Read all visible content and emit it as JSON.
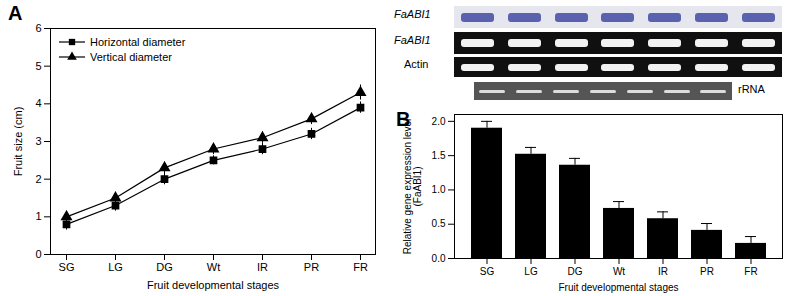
{
  "chart_data": [
    {
      "type": "line",
      "title": "A",
      "categories": [
        "SG",
        "LG",
        "DG",
        "Wt",
        "IR",
        "PR",
        "FR"
      ],
      "series": [
        {
          "name": "Horizontal diameter",
          "color": "#000000",
          "marker": "square",
          "values": [
            0.8,
            1.3,
            2.0,
            2.5,
            2.8,
            3.2,
            3.9
          ],
          "errors": [
            0.15,
            0.15,
            0.15,
            0.12,
            0.15,
            0.15,
            0.15
          ]
        },
        {
          "name": "Vertical diameter",
          "color": "#000000",
          "marker": "triangle",
          "values": [
            1.0,
            1.5,
            2.3,
            2.8,
            3.1,
            3.6,
            4.3
          ],
          "errors": [
            0.15,
            0.15,
            0.15,
            0.15,
            0.15,
            0.15,
            0.2
          ]
        }
      ],
      "x_label": "Fruit developmental stages",
      "y_label": "Fruit size (cm)",
      "ylim": [
        0,
        6
      ],
      "yticks": [
        0,
        1,
        2,
        3,
        4,
        5,
        6
      ],
      "legend": "upper left"
    },
    {
      "type": "bar",
      "title": "B",
      "categories": [
        "SG",
        "LG",
        "DG",
        "Wt",
        "IR",
        "PR",
        "FR"
      ],
      "values": [
        1.9,
        1.52,
        1.36,
        0.73,
        0.58,
        0.41,
        0.22
      ],
      "errors": [
        0.1,
        0.1,
        0.1,
        0.1,
        0.1,
        0.1,
        0.1
      ],
      "color": "#000000",
      "x_label": "Fruit developmental stages",
      "y_label": "Relative gene expression level (FaABI1)",
      "ylim": [
        0,
        2.1
      ],
      "yticks": [
        {
          "value": 0,
          "label": "0.0"
        },
        {
          "value": 0.5,
          "label": "0.5"
        },
        {
          "value": 1,
          "label": "1.0"
        },
        {
          "value": 1.5,
          "label": "1.5"
        },
        {
          "value": 2,
          "label": "2.0"
        }
      ],
      "annotations": [
        "FaABI1",
        "FaABI1",
        "Actin",
        "rRNA"
      ]
    }
  ]
}
